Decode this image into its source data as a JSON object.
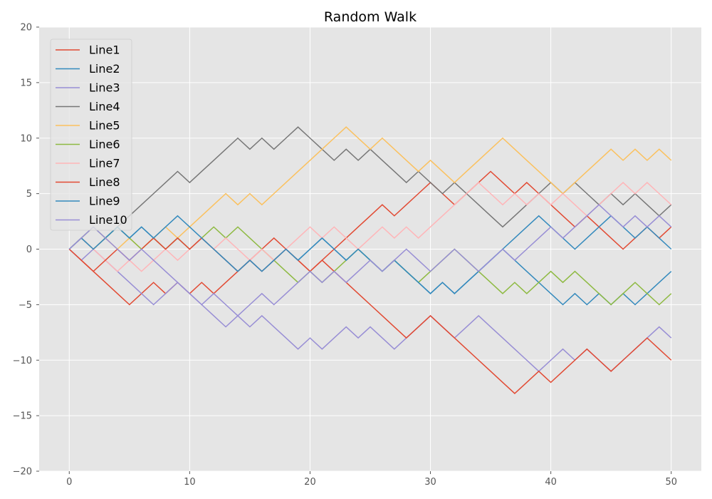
{
  "chart_data": {
    "type": "line",
    "title": "Random Walk",
    "xlabel": "",
    "ylabel": "",
    "xlim": [
      -2.5,
      52.5
    ],
    "ylim": [
      -20,
      20
    ],
    "xticks": [
      0,
      10,
      20,
      30,
      40,
      50
    ],
    "yticks": [
      -20,
      -15,
      -10,
      -5,
      0,
      5,
      10,
      15,
      20
    ],
    "grid": true,
    "legend_position": "top-left",
    "series": [
      {
        "name": "Line1",
        "color": "#E24A33",
        "values": [
          0,
          -1,
          -2,
          -3,
          -4,
          -5,
          -4,
          -3,
          -4,
          -3,
          -4,
          -3,
          -4,
          -3,
          -2,
          -1,
          0,
          1,
          0,
          -1,
          -2,
          -1,
          0,
          1,
          2,
          3,
          4,
          3,
          4,
          5,
          6,
          5,
          4,
          5,
          6,
          7,
          6,
          5,
          6,
          5,
          4,
          3,
          2,
          3,
          2,
          1,
          0,
          1,
          2,
          1,
          2
        ]
      },
      {
        "name": "Line2",
        "color": "#348ABD",
        "values": [
          0,
          1,
          0,
          1,
          2,
          1,
          2,
          1,
          0,
          1,
          0,
          1,
          0,
          -1,
          -2,
          -1,
          -2,
          -1,
          0,
          -1,
          0,
          1,
          0,
          -1,
          0,
          -1,
          -2,
          -1,
          -2,
          -3,
          -4,
          -3,
          -4,
          -3,
          -2,
          -1,
          0,
          -1,
          -2,
          -3,
          -4,
          -5,
          -4,
          -5,
          -4,
          -5,
          -4,
          -5,
          -4,
          -3,
          -2
        ]
      },
      {
        "name": "Line3",
        "color": "#988ED5",
        "values": [
          0,
          -1,
          0,
          -1,
          -2,
          -3,
          -4,
          -5,
          -4,
          -3,
          -4,
          -5,
          -6,
          -7,
          -6,
          -7,
          -6,
          -7,
          -8,
          -9,
          -8,
          -9,
          -8,
          -7,
          -8,
          -7,
          -8,
          -9,
          -8,
          -7,
          -6,
          -7,
          -8,
          -7,
          -6,
          -7,
          -8,
          -9,
          -10,
          -11,
          -10,
          -9,
          -10,
          -9,
          -10,
          -11,
          -10,
          -9,
          -8,
          -7,
          -8
        ]
      },
      {
        "name": "Line4",
        "color": "#777777",
        "values": [
          0,
          1,
          0,
          1,
          2,
          3,
          4,
          5,
          6,
          7,
          6,
          7,
          8,
          9,
          10,
          9,
          10,
          9,
          10,
          11,
          10,
          9,
          8,
          9,
          8,
          9,
          8,
          7,
          6,
          7,
          6,
          5,
          6,
          5,
          4,
          3,
          2,
          3,
          4,
          5,
          6,
          5,
          6,
          5,
          4,
          5,
          4,
          5,
          4,
          3,
          4
        ]
      },
      {
        "name": "Line5",
        "color": "#FBC15E",
        "values": [
          0,
          1,
          0,
          1,
          0,
          1,
          0,
          1,
          2,
          1,
          2,
          3,
          4,
          5,
          4,
          5,
          4,
          5,
          6,
          7,
          8,
          9,
          10,
          11,
          10,
          9,
          10,
          9,
          8,
          7,
          8,
          7,
          6,
          7,
          8,
          9,
          10,
          9,
          8,
          7,
          6,
          5,
          6,
          7,
          8,
          9,
          8,
          9,
          8,
          9,
          8
        ]
      },
      {
        "name": "Line6",
        "color": "#8EBA42",
        "values": [
          0,
          1,
          2,
          1,
          2,
          1,
          0,
          1,
          0,
          1,
          0,
          1,
          2,
          1,
          2,
          1,
          0,
          -1,
          -2,
          -3,
          -2,
          -3,
          -2,
          -1,
          0,
          -1,
          -2,
          -1,
          -2,
          -3,
          -2,
          -1,
          0,
          -1,
          -2,
          -3,
          -4,
          -3,
          -4,
          -3,
          -2,
          -3,
          -2,
          -3,
          -4,
          -5,
          -4,
          -3,
          -4,
          -5,
          -4
        ]
      },
      {
        "name": "Line7",
        "color": "#FFB5B8",
        "values": [
          0,
          1,
          0,
          -1,
          -2,
          -1,
          -2,
          -1,
          0,
          -1,
          0,
          1,
          0,
          1,
          0,
          -1,
          0,
          -1,
          0,
          1,
          2,
          1,
          2,
          1,
          0,
          1,
          2,
          1,
          2,
          1,
          2,
          3,
          4,
          5,
          6,
          5,
          4,
          5,
          4,
          5,
          4,
          5,
          4,
          3,
          4,
          5,
          6,
          5,
          6,
          5,
          4
        ]
      },
      {
        "name": "Line8",
        "color": "#E24A33",
        "values": [
          0,
          -1,
          -2,
          -1,
          0,
          -1,
          0,
          1,
          0,
          1,
          0,
          1,
          0,
          -1,
          -2,
          -1,
          -2,
          -1,
          0,
          -1,
          -2,
          -1,
          -2,
          -3,
          -4,
          -5,
          -6,
          -7,
          -8,
          -7,
          -6,
          -7,
          -8,
          -9,
          -10,
          -11,
          -12,
          -13,
          -12,
          -11,
          -12,
          -11,
          -10,
          -9,
          -10,
          -11,
          -10,
          -9,
          -8,
          -9,
          -10
        ]
      },
      {
        "name": "Line9",
        "color": "#348ABD",
        "values": [
          0,
          1,
          0,
          1,
          2,
          1,
          2,
          1,
          2,
          3,
          2,
          1,
          0,
          -1,
          -2,
          -1,
          -2,
          -1,
          0,
          -1,
          0,
          1,
          0,
          -1,
          0,
          -1,
          -2,
          -1,
          -2,
          -3,
          -4,
          -3,
          -4,
          -3,
          -2,
          -1,
          0,
          1,
          2,
          3,
          2,
          1,
          0,
          1,
          2,
          3,
          2,
          1,
          2,
          1,
          0
        ]
      },
      {
        "name": "Line10",
        "color": "#988ED5",
        "values": [
          0,
          1,
          2,
          1,
          0,
          -1,
          0,
          -1,
          -2,
          -3,
          -4,
          -5,
          -4,
          -5,
          -6,
          -5,
          -4,
          -5,
          -4,
          -3,
          -2,
          -3,
          -2,
          -3,
          -2,
          -1,
          -2,
          -1,
          0,
          -1,
          -2,
          -1,
          0,
          -1,
          -2,
          -1,
          0,
          -1,
          0,
          1,
          2,
          1,
          2,
          3,
          4,
          3,
          2,
          3,
          2,
          3,
          2
        ]
      }
    ]
  }
}
